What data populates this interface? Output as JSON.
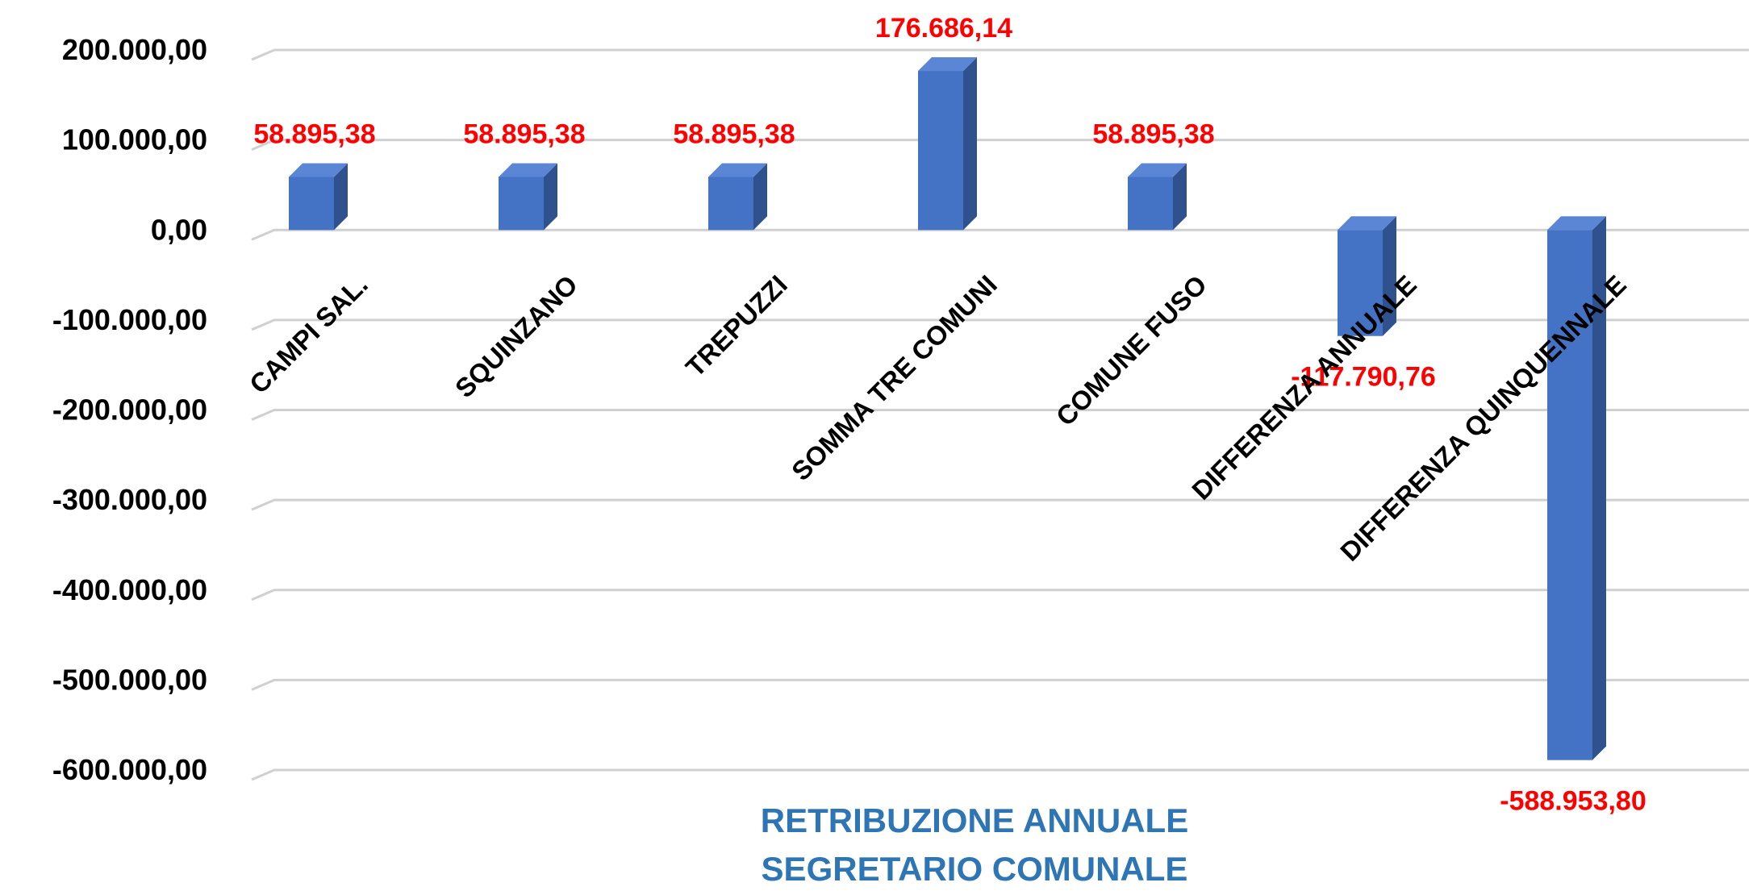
{
  "chart_data": {
    "type": "bar3d",
    "title": [
      "RETRIBUZIONE  ANNUALE",
      "SEGRETARIO COMUNALE"
    ],
    "categories": [
      "CAMPI SAL.",
      "SQUINZANO",
      "TREPUZZI",
      "SOMMA TRE COMUNI",
      "COMUNE FUSO",
      "DIFFERENZA ANNUALE",
      "DIFFERENZA QUINQUENNALE"
    ],
    "values": [
      58895.38,
      58895.38,
      58895.38,
      176686.14,
      58895.38,
      -117790.76,
      -588953.8
    ],
    "value_labels": [
      "58.895,38",
      "58.895,38",
      "58.895,38",
      "176.686,14",
      "58.895,38",
      "-117.790,76",
      "-588.953,80"
    ],
    "color": "#4472c4",
    "ylim": [
      -600000,
      200000
    ],
    "yticks": [
      {
        "value": -600000,
        "label": "-600.000,00"
      },
      {
        "value": -500000,
        "label": "-500.000,00"
      },
      {
        "value": -400000,
        "label": "-400.000,00"
      },
      {
        "value": -300000,
        "label": "-300.000,00"
      },
      {
        "value": -200000,
        "label": "-200.000,00"
      },
      {
        "value": -100000,
        "label": "-100.000,00"
      },
      {
        "value": 0,
        "label": "0,00"
      },
      {
        "value": 100000,
        "label": "100.000,00"
      },
      {
        "value": 200000,
        "label": "200.000,00"
      }
    ],
    "grid": true
  }
}
